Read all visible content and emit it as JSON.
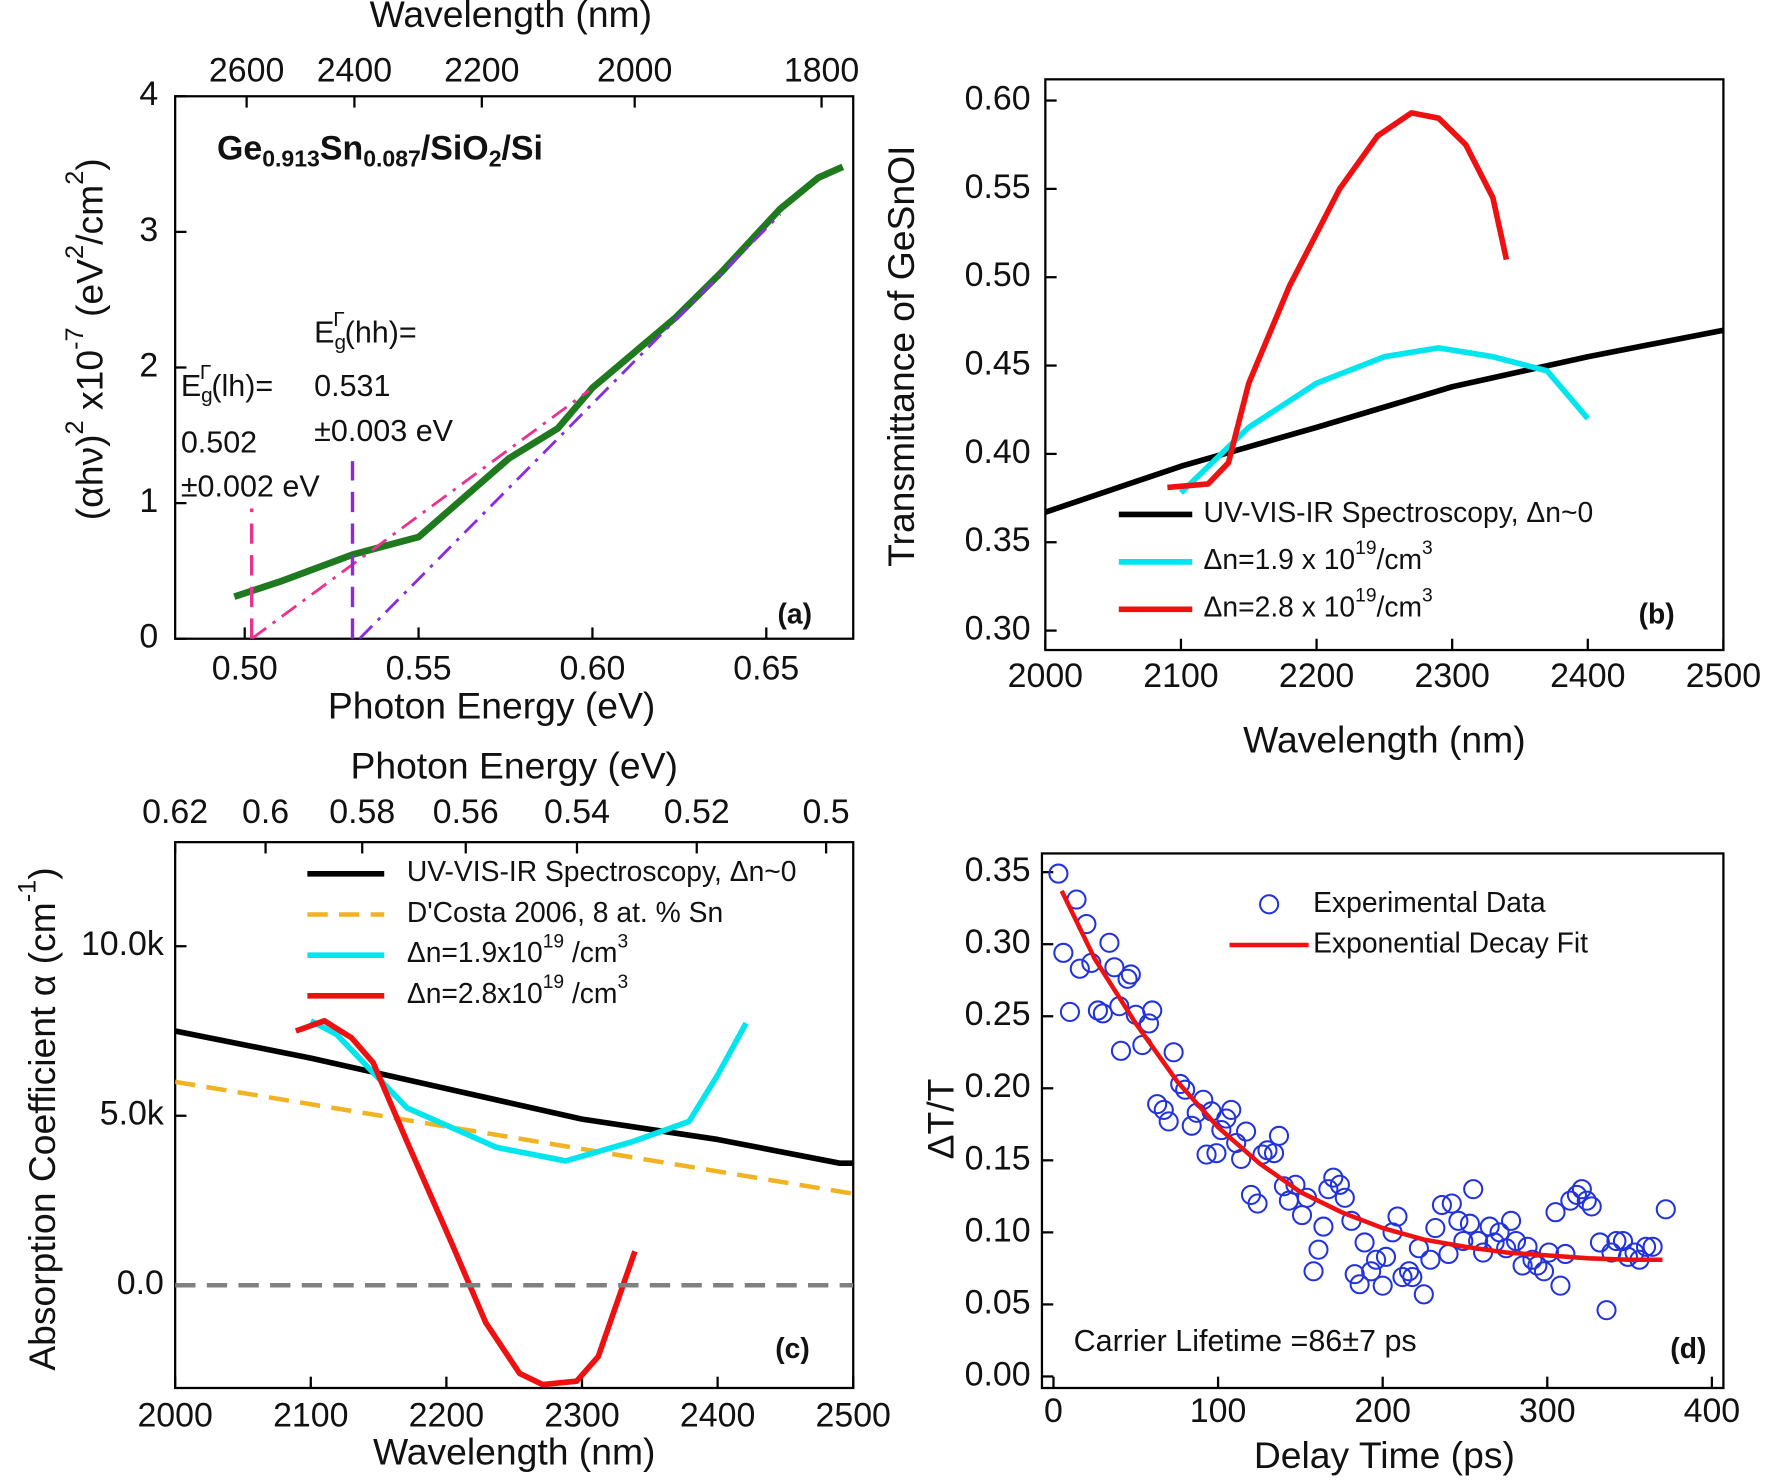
{
  "chart_data": [
    {
      "type": "line",
      "xlabel": "Photon Energy (eV)",
      "x2label": "Wavelength (nm)",
      "ylabel": [
        "(αhν)",
        {
          "sup": "2"
        },
        " x10",
        {
          "sup": "-7"
        },
        " (eV",
        {
          "sup": "2"
        },
        "/cm",
        {
          "sup": "2"
        },
        ")"
      ],
      "xlim": [
        0.48,
        0.675
      ],
      "ylim": [
        0,
        4
      ],
      "xticks": [
        {
          "value": 0.5,
          "label": "0.50"
        },
        0.55,
        {
          "value": 0.6,
          "label": "0.60"
        },
        0.65
      ],
      "yticks": [
        0,
        1,
        2,
        3,
        4
      ],
      "x2lim": [
        2752,
        1770
      ],
      "x2scale": "reciprocal",
      "x2ticks": [
        2600,
        2400,
        2200,
        2000,
        1800
      ],
      "series": [
        {
          "color": "#1f7a1f",
          "width": 6,
          "x": [
            0.497,
            0.51,
            0.531,
            0.55,
            0.576,
            0.59,
            0.6,
            0.624,
            0.637,
            0.654,
            0.665,
            0.672
          ],
          "values": [
            0.31,
            0.42,
            0.62,
            0.75,
            1.33,
            1.55,
            1.85,
            2.37,
            2.7,
            3.17,
            3.4,
            3.48
          ]
        },
        {
          "color": "#e8338f",
          "width": 2.5,
          "dash": "dashdot",
          "x": [
            0.502,
            0.599
          ],
          "values": [
            0,
            1.83
          ]
        },
        {
          "color": "#8a2be2",
          "width": 2.5,
          "dash": "dashdot",
          "x": [
            0.533,
            0.654
          ],
          "values": [
            0,
            3.13
          ]
        },
        {
          "color": "#e8338f",
          "width": 3,
          "dash": "dash",
          "x": [
            0.502,
            0.502
          ],
          "values": [
            0,
            0.96
          ]
        },
        {
          "color": "#8a2be2",
          "width": 3,
          "dash": "dash",
          "x": [
            0.531,
            0.531
          ],
          "values": [
            0,
            1.31
          ]
        }
      ],
      "annotations": [
        {
          "text": [
            "Ge",
            {
              "sub": "0.913"
            },
            "Sn",
            {
              "sub": "0.087"
            },
            "/SiO",
            {
              "sub": "2"
            },
            "/Si"
          ],
          "bold": true
        },
        {
          "text": [
            "E",
            {
              "sub": "g"
            },
            {
              "sup": "Γ"
            },
            "(hh)="
          ]
        },
        {
          "text": "0.531"
        },
        {
          "text": "±0.003 eV"
        },
        {
          "text": [
            "E",
            {
              "sub": "g"
            },
            {
              "sup": "Γ"
            },
            "(lh)="
          ]
        },
        {
          "text": "0.502"
        },
        {
          "text": "±0.002 eV"
        },
        {
          "text": "(a)",
          "bold": true
        }
      ]
    },
    {
      "type": "line",
      "xlabel": "Wavelength (nm)",
      "ylabel": "Transmittance of GeSnOI",
      "xlim": [
        2000,
        2500
      ],
      "ylim": [
        0.289,
        0.612
      ],
      "xticks": [
        2000,
        2100,
        2200,
        2300,
        2400,
        2500
      ],
      "yticks": [
        {
          "value": 0.3,
          "label": "0.30"
        },
        0.35,
        {
          "value": 0.4,
          "label": "0.40"
        },
        0.45,
        {
          "value": 0.5,
          "label": "0.50"
        },
        0.55,
        {
          "value": 0.6,
          "label": "0.60"
        }
      ],
      "series": [
        {
          "name": "UV-VIS-IR Spectroscopy, Δn~0",
          "color": "#000000",
          "width": 5,
          "x": [
            2000,
            2100,
            2200,
            2300,
            2400,
            2500
          ],
          "values": [
            0.367,
            0.393,
            0.415,
            0.438,
            0.455,
            0.47
          ]
        },
        {
          "name": [
            "Δn=1.9 x 10",
            {
              "sup": "19"
            },
            "/cm",
            {
              "sup": "3"
            }
          ],
          "color": "#00e5ee",
          "width": 5,
          "x": [
            2100,
            2150,
            2200,
            2250,
            2290,
            2330,
            2370,
            2400
          ],
          "values": [
            0.378,
            0.415,
            0.44,
            0.455,
            0.46,
            0.455,
            0.447,
            0.42
          ]
        },
        {
          "name": [
            "Δn=2.8 x 10",
            {
              "sup": "19"
            },
            "/cm",
            {
              "sup": "3"
            }
          ],
          "color": "#ee1111",
          "width": 5,
          "x": [
            2090,
            2120,
            2135,
            2150,
            2180,
            2217,
            2245,
            2270,
            2290,
            2310,
            2330,
            2340
          ],
          "values": [
            0.381,
            0.383,
            0.395,
            0.44,
            0.495,
            0.55,
            0.58,
            0.593,
            0.59,
            0.575,
            0.545,
            0.51
          ]
        }
      ],
      "annotations": [
        {
          "text": "(b)",
          "bold": true
        }
      ]
    },
    {
      "type": "line",
      "xlabel": "Wavelength (nm)",
      "x2label": "Photon Energy (eV)",
      "ylabel": [
        "Absorption Coefficient  α (cm",
        {
          "sup": "-1"
        },
        ")"
      ],
      "xlim": [
        2000,
        2500
      ],
      "ylim": [
        -3030,
        13070
      ],
      "xticks": [
        2000,
        2100,
        2200,
        2300,
        2400,
        2500
      ],
      "yticks": [
        {
          "value": 0,
          "label": "0.0"
        },
        {
          "value": 5000,
          "label": "5.0k"
        },
        {
          "value": 10000,
          "label": "10.0k"
        }
      ],
      "x2lim": [
        0.62,
        0.496
      ],
      "x2scale": "reciprocal",
      "x2ticks": [
        0.62,
        0.6,
        0.58,
        0.56,
        0.54,
        0.52,
        0.5
      ],
      "series": [
        {
          "name": "UV-VIS-IR Spectroscopy, Δn~0",
          "color": "#000000",
          "width": 5,
          "x": [
            2000,
            2100,
            2200,
            2300,
            2400,
            2490,
            2500
          ],
          "values": [
            7500,
            6700,
            5800,
            4900,
            4300,
            3600,
            3600
          ]
        },
        {
          "name": "D'Costa 2006, 8 at. % Sn",
          "color": "#f0b323",
          "width": 4,
          "dash": "dash",
          "x": [
            2000,
            2500
          ],
          "values": [
            6000,
            2700
          ]
        },
        {
          "name": [
            "Δn=1.9x10",
            {
              "sup": "19"
            },
            " /cm",
            {
              "sup": "3"
            }
          ],
          "color": "#00e5ee",
          "width": 5,
          "x": [
            2100,
            2119,
            2171,
            2237,
            2288,
            2337,
            2379,
            2400,
            2421
          ],
          "values": [
            7800,
            7400,
            5230,
            4067,
            3667,
            4233,
            4833,
            6200,
            7733
          ]
        },
        {
          "name": [
            "Δn=2.8x10",
            {
              "sup": "19"
            },
            " /cm",
            {
              "sup": "3"
            }
          ],
          "color": "#ee1111",
          "width": 5,
          "x": [
            2089,
            2110,
            2130,
            2146,
            2171,
            2204,
            2229,
            2254,
            2271,
            2296,
            2312,
            2339
          ],
          "values": [
            7500,
            7800,
            7300,
            6567,
            4233,
            1233,
            -1100,
            -2600,
            -2930,
            -2830,
            -2100,
            1000
          ]
        },
        {
          "color": "#808080",
          "width": 4,
          "dash": "dash",
          "x": [
            2000,
            2500
          ],
          "values": [
            0,
            0
          ]
        }
      ],
      "annotations": [
        {
          "text": "(c)",
          "bold": true
        }
      ]
    },
    {
      "type": "scatter",
      "xlabel": "Delay Time (ps)",
      "ylabel": "ΔT/T",
      "xlim": [
        -7,
        407
      ],
      "ylim": [
        -0.008,
        0.363
      ],
      "xticks": [
        0,
        100,
        200,
        300,
        400
      ],
      "yticks": [
        {
          "value": 0,
          "label": "0.00"
        },
        0.05,
        {
          "value": 0.1,
          "label": "0.10"
        },
        0.15,
        {
          "value": 0.2,
          "label": "0.20"
        },
        0.25,
        {
          "value": 0.3,
          "label": "0.30"
        },
        0.35
      ],
      "series": [
        {
          "name": "Experimental Data",
          "color": "#2233dd",
          "marker": "circle-open",
          "x": [
            3,
            6,
            10,
            14,
            16,
            20,
            23,
            27,
            30,
            34,
            37,
            40,
            41,
            45,
            47,
            50,
            54,
            58,
            60,
            63,
            67,
            70,
            73,
            77,
            80,
            84,
            87,
            91,
            93,
            96,
            99,
            102,
            105,
            108,
            111,
            114,
            117,
            120,
            124,
            127,
            130,
            134,
            137,
            140,
            143,
            147,
            151,
            154,
            158,
            161,
            164,
            167,
            170,
            174,
            177,
            181,
            183,
            186,
            189,
            193,
            196,
            200,
            202,
            206,
            209,
            212,
            216,
            218,
            222,
            225,
            229,
            232,
            236,
            240,
            242,
            246,
            249,
            253,
            255,
            258,
            261,
            265,
            268,
            271,
            275,
            278,
            281,
            285,
            288,
            291,
            294,
            298,
            301,
            305,
            308,
            311,
            314,
            318,
            321,
            324,
            327,
            332,
            336,
            339,
            342,
            346,
            349,
            353,
            356,
            360,
            364,
            372
          ],
          "values": [
            0.349,
            0.294,
            0.253,
            0.331,
            0.283,
            0.314,
            0.287,
            0.254,
            0.252,
            0.301,
            0.284,
            0.257,
            0.226,
            0.276,
            0.279,
            0.251,
            0.23,
            0.245,
            0.254,
            0.189,
            0.185,
            0.177,
            0.225,
            0.203,
            0.199,
            0.174,
            0.183,
            0.192,
            0.154,
            0.184,
            0.155,
            0.171,
            0.179,
            0.185,
            0.162,
            0.151,
            0.17,
            0.126,
            0.12,
            0.154,
            0.157,
            0.155,
            0.167,
            0.132,
            0.122,
            0.133,
            0.112,
            0.124,
            0.073,
            0.088,
            0.104,
            0.13,
            0.138,
            0.133,
            0.124,
            0.108,
            0.071,
            0.064,
            0.093,
            0.073,
            0.081,
            0.063,
            0.083,
            0.1,
            0.111,
            0.069,
            0.073,
            0.069,
            0.089,
            0.057,
            0.081,
            0.103,
            0.119,
            0.085,
            0.12,
            0.108,
            0.094,
            0.106,
            0.13,
            0.094,
            0.086,
            0.104,
            0.093,
            0.1,
            0.089,
            0.108,
            0.094,
            0.077,
            0.09,
            0.081,
            0.077,
            0.073,
            0.086,
            0.114,
            0.063,
            0.085,
            0.122,
            0.126,
            0.13,
            0.122,
            0.118,
            0.093,
            0.046,
            0.086,
            0.094,
            0.094,
            0.083,
            0.086,
            0.081,
            0.09,
            0.09,
            0.116
          ]
        },
        {
          "name": "Exponential Decay Fit",
          "color": "#ee1111",
          "marker": "line",
          "width": 4,
          "x": [
            5,
            25,
            50,
            75,
            100,
            125,
            150,
            175,
            200,
            225,
            250,
            275,
            300,
            325,
            350,
            370
          ],
          "values": [
            0.337,
            0.29,
            0.245,
            0.205,
            0.173,
            0.148,
            0.128,
            0.114,
            0.103,
            0.095,
            0.09,
            0.086,
            0.084,
            0.082,
            0.081,
            0.081
          ]
        }
      ],
      "annotations": [
        {
          "text": "Carrier Lifetime =86±7 ps",
          "color": "#ee1111"
        },
        {
          "text": "(d)",
          "bold": true
        }
      ]
    }
  ]
}
